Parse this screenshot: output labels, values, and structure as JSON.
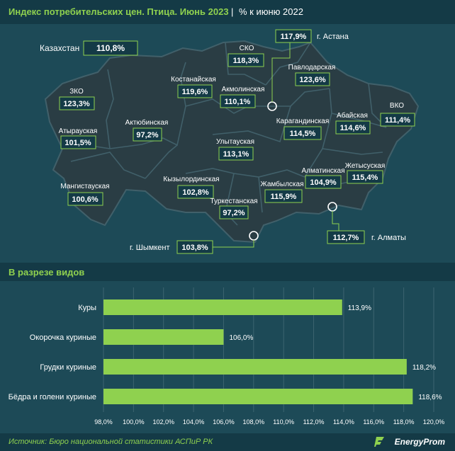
{
  "header": {
    "title": "Индекс потребительских цен. Птица. Июнь 2023",
    "separator": "|",
    "unit": "% к июню 2022"
  },
  "map": {
    "kazakhstan": {
      "name": "Казахстан",
      "value": "110,8%"
    },
    "regions": [
      {
        "name": "ЗКО",
        "value": "123,3%"
      },
      {
        "name": "Атырауская",
        "value": "101,5%"
      },
      {
        "name": "Мангистауская",
        "value": "100,6%"
      },
      {
        "name": "Актюбинская",
        "value": "97,2%"
      },
      {
        "name": "Костанайская",
        "value": "119,6%"
      },
      {
        "name": "СКО",
        "value": "118,3%"
      },
      {
        "name": "Акмолинская",
        "value": "110,1%"
      },
      {
        "name": "Павлодарская",
        "value": "123,6%"
      },
      {
        "name": "ВКО",
        "value": "111,4%"
      },
      {
        "name": "Абайская",
        "value": "114,6%"
      },
      {
        "name": "Карагандинская",
        "value": "114,5%"
      },
      {
        "name": "Улытауская",
        "value": "113,1%"
      },
      {
        "name": "Кызылординская",
        "value": "102,8%"
      },
      {
        "name": "Туркестанская",
        "value": "97,2%"
      },
      {
        "name": "Жамбылская",
        "value": "115,9%"
      },
      {
        "name": "Алматинская",
        "value": "104,9%"
      },
      {
        "name": "Жетысуская",
        "value": "115,4%"
      }
    ],
    "cities": [
      {
        "name": "г. Астана",
        "value": "117,9%"
      },
      {
        "name": "г. Алматы",
        "value": "112,7%"
      },
      {
        "name": "г. Шымкент",
        "value": "103,8%"
      }
    ]
  },
  "section_title": "В разрезе видов",
  "chart_data": {
    "type": "bar",
    "orientation": "horizontal",
    "categories": [
      "Куры",
      "Окорочка куриные",
      "Грудки куриные",
      "Бёдра и голени куриные"
    ],
    "values": [
      113.9,
      106.0,
      118.2,
      118.6
    ],
    "value_labels": [
      "113,9%",
      "106,0%",
      "118,2%",
      "118,6%"
    ],
    "xlim": [
      98,
      120
    ],
    "x_ticks": [
      "98,0%",
      "100,0%",
      "102,0%",
      "104,0%",
      "106,0%",
      "108,0%",
      "110,0%",
      "112,0%",
      "114,0%",
      "116,0%",
      "118,0%",
      "120,0%"
    ],
    "grid": true,
    "bar_color": "#8fd14f"
  },
  "footer": {
    "source": "Источник: Бюро национальной статистики АСПиР РК",
    "logo": "EnergyProm"
  }
}
